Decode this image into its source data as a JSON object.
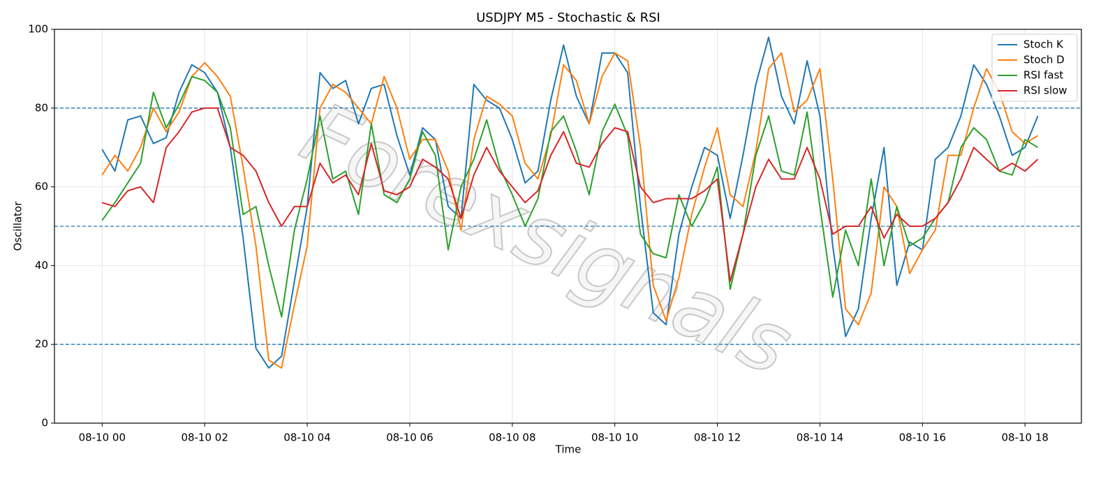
{
  "chart_data": {
    "type": "line",
    "title": "USDJPY M5 - Stochastic & RSI",
    "xlabel": "Time",
    "ylabel": "Oscillator",
    "watermark": "Forexsignals",
    "grid": true,
    "legend": "upper right",
    "xlim": [
      -0.93,
      19.1
    ],
    "ylim": [
      0,
      100
    ],
    "yticks": [
      0,
      20,
      40,
      60,
      80,
      100
    ],
    "xticks": [
      {
        "value": 0,
        "label": "08-10 00"
      },
      {
        "value": 2,
        "label": "08-10 02"
      },
      {
        "value": 4,
        "label": "08-10 04"
      },
      {
        "value": 6,
        "label": "08-10 06"
      },
      {
        "value": 8,
        "label": "08-10 08"
      },
      {
        "value": 10,
        "label": "08-10 10"
      },
      {
        "value": 12,
        "label": "08-10 12"
      },
      {
        "value": 14,
        "label": "08-10 14"
      },
      {
        "value": 16,
        "label": "08-10 16"
      },
      {
        "value": 18,
        "label": "08-10 18"
      }
    ],
    "hlines": [
      20,
      50,
      80
    ],
    "hline_color": "#1f77b4",
    "x": [
      0,
      0.25,
      0.5,
      0.75,
      1,
      1.25,
      1.5,
      1.75,
      2,
      2.25,
      2.5,
      2.75,
      3,
      3.25,
      3.5,
      3.75,
      4,
      4.25,
      4.5,
      4.75,
      5,
      5.25,
      5.5,
      5.75,
      6,
      6.25,
      6.5,
      6.75,
      7,
      7.25,
      7.5,
      7.75,
      8,
      8.25,
      8.5,
      8.75,
      9,
      9.25,
      9.5,
      9.75,
      10,
      10.25,
      10.5,
      10.75,
      11,
      11.25,
      11.5,
      11.75,
      12,
      12.25,
      12.5,
      12.75,
      13,
      13.25,
      13.5,
      13.75,
      14,
      14.25,
      14.5,
      14.75,
      15,
      15.25,
      15.5,
      15.75,
      16,
      16.25,
      16.5,
      16.75,
      17,
      17.25,
      17.5,
      17.75,
      18,
      18.25
    ],
    "series": [
      {
        "name": "Stoch K",
        "color": "#1f77b4",
        "values": [
          69.5,
          64,
          77,
          78,
          71,
          72.5,
          84,
          91,
          89,
          84,
          70,
          47,
          19,
          14,
          17,
          36,
          55,
          89,
          85,
          87,
          76,
          85,
          86,
          73,
          63,
          75,
          72,
          55,
          52,
          86,
          82,
          80,
          72,
          61,
          64,
          82,
          96,
          83,
          76,
          94,
          94,
          89,
          55,
          28,
          25,
          48,
          60,
          70,
          68,
          52,
          68,
          86,
          98,
          83,
          76,
          92,
          78,
          45,
          22,
          29,
          52,
          70,
          35,
          46,
          44,
          67,
          70,
          78,
          91,
          86,
          78,
          68,
          70,
          78
        ]
      },
      {
        "name": "Stoch D",
        "color": "#ff7f0e",
        "values": [
          63,
          68,
          64,
          70,
          80,
          74,
          79,
          88,
          91.5,
          88,
          83,
          65,
          45,
          16,
          14,
          30,
          45,
          80,
          86,
          84,
          80,
          76,
          88,
          80,
          67,
          72,
          72,
          64,
          49,
          72,
          83,
          81,
          78,
          66,
          62,
          73,
          91,
          87,
          76,
          88,
          94,
          92,
          70,
          35,
          26,
          37,
          53,
          65,
          75,
          58,
          55,
          69,
          90,
          94,
          79,
          82,
          90,
          62,
          29,
          25,
          33,
          60,
          55,
          38,
          44,
          49,
          68,
          68,
          80,
          90,
          84,
          74,
          71,
          73
        ]
      },
      {
        "name": "RSI fast",
        "color": "#2ca02c",
        "values": [
          51.5,
          56,
          61,
          66,
          84,
          75,
          81,
          88,
          87,
          84,
          75,
          53,
          55,
          40,
          27,
          49,
          62,
          78,
          62,
          64,
          53,
          76,
          58,
          56,
          62,
          74,
          68,
          44,
          60,
          67,
          77,
          65,
          58,
          50,
          57,
          74,
          78,
          69,
          58,
          74,
          81,
          73,
          48,
          43,
          42,
          58,
          50,
          56,
          65,
          34,
          48,
          68,
          78,
          64,
          63,
          79,
          55,
          32,
          49,
          40,
          62,
          40,
          55,
          45,
          47,
          52,
          56,
          70,
          75,
          72,
          64,
          63,
          72,
          70
        ]
      },
      {
        "name": "RSI slow",
        "color": "#d62728",
        "values": [
          56,
          55,
          59,
          60,
          56,
          70,
          74,
          79,
          80,
          80,
          70,
          68,
          64,
          56,
          50,
          55,
          55,
          66,
          61,
          63,
          58,
          71,
          59,
          58,
          60,
          67,
          65,
          62,
          52,
          63,
          70,
          64,
          60,
          56,
          59,
          68,
          74,
          66,
          65,
          71,
          75,
          74,
          60,
          56,
          57,
          57,
          57,
          59,
          62,
          36,
          48,
          60,
          67,
          62,
          62,
          70,
          62,
          48,
          50,
          50,
          55,
          47,
          53,
          50,
          50,
          52,
          56,
          62,
          70,
          67,
          64,
          66,
          64,
          67
        ]
      }
    ]
  }
}
